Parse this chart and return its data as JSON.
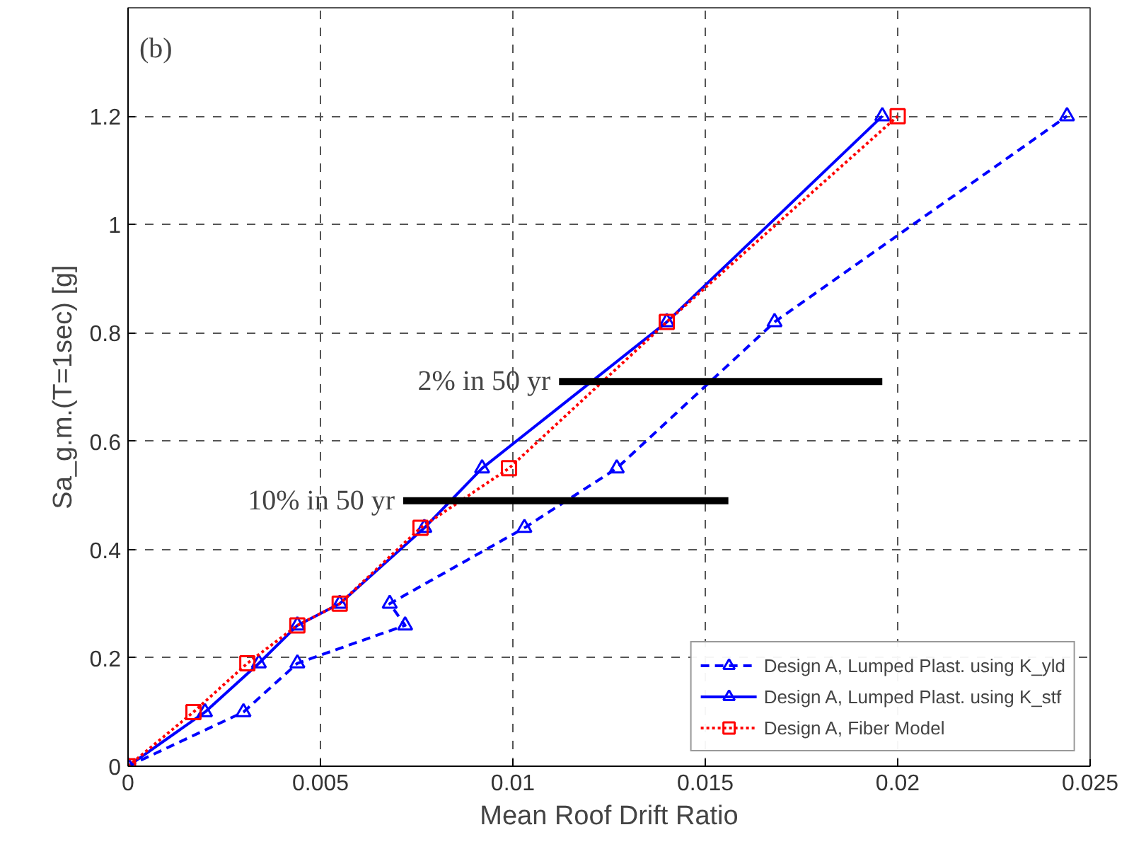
{
  "chart_data": {
    "type": "line",
    "xlabel": "Mean Roof Drift Ratio",
    "ylabel": "Sa_g.m.(T=1sec) [g]",
    "xlim": [
      0,
      0.025
    ],
    "ylim": [
      0,
      1.4
    ],
    "xticks": [
      0,
      0.005,
      0.01,
      0.015,
      0.02,
      0.025
    ],
    "yticks": [
      0,
      0.2,
      0.4,
      0.6,
      0.8,
      1,
      1.2
    ],
    "grid": true,
    "legend": "bottom right",
    "annotations": [
      "(b)",
      {
        "text": "2% in 50 yr",
        "x": 0.0112,
        "y": 0.71
      },
      {
        "text": "10% in 50 yr",
        "x": 0.00715,
        "y": 0.49
      }
    ],
    "series": [
      {
        "name": "Design A, Lumped Plast. using K_yld",
        "color": "#0000ff",
        "marker": "triangle",
        "line_style": "dashed",
        "x": [
          0,
          0.003,
          0.0044,
          0.0072,
          0.0068,
          0.0103,
          0.0127,
          0.0168,
          0.0244
        ],
        "values": [
          0,
          0.1,
          0.19,
          0.26,
          0.3,
          0.44,
          0.55,
          0.82,
          1.2
        ]
      },
      {
        "name": "Design A, Lumped Plast. using K_stf",
        "color": "#0000ff",
        "marker": "triangle",
        "line_style": "solid",
        "x": [
          0,
          0.002,
          0.0034,
          0.0044,
          0.0055,
          0.0077,
          0.0092,
          0.014,
          0.0196
        ],
        "values": [
          0,
          0.1,
          0.19,
          0.26,
          0.3,
          0.44,
          0.55,
          0.82,
          1.2
        ]
      },
      {
        "name": "Design A, Fiber Model",
        "color": "#ff0000",
        "marker": "square",
        "line_style": "dotted",
        "x": [
          0,
          0.0017,
          0.0031,
          0.0044,
          0.0055,
          0.0076,
          0.0099,
          0.014,
          0.02
        ],
        "values": [
          0,
          0.1,
          0.19,
          0.26,
          0.3,
          0.44,
          0.55,
          0.82,
          1.2
        ]
      },
      {
        "color": "#000000",
        "marker": "none",
        "line_style": "solid",
        "x": [
          0.0112,
          0.0196
        ],
        "values": [
          0.71,
          0.71
        ]
      },
      {
        "color": "#000000",
        "marker": "none",
        "line_style": "solid",
        "x": [
          0.00715,
          0.0156
        ],
        "values": [
          0.49,
          0.49
        ]
      }
    ]
  }
}
